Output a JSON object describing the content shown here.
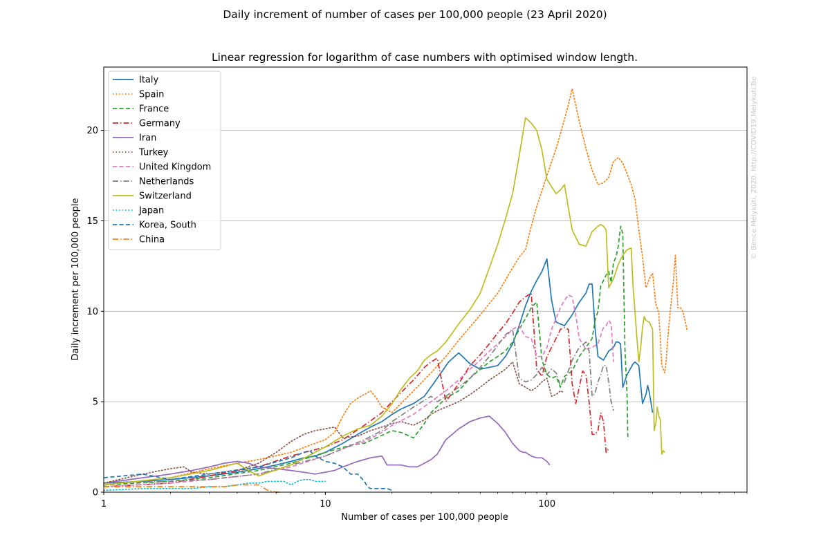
{
  "figure": {
    "suptitle": "Daily increment of number of cases per 100,000 people (23 April 2020)",
    "watermark": "© Bence Mélykúti, 2020. http://COVID19.Melykuti.Be"
  },
  "chart_data": {
    "type": "line",
    "title": "Linear regression for logarithm of case numbers with optimised window length.",
    "xlabel": "Number of cases per 100,000 people",
    "ylabel": "Daily increment per 100,000 people",
    "xscale": "log",
    "xlim": [
      1,
      800
    ],
    "ylim": [
      0,
      23.5
    ],
    "xticks": [
      {
        "value": 1,
        "label": "1"
      },
      {
        "value": 10,
        "label": "10"
      },
      {
        "value": 100,
        "label": "100"
      }
    ],
    "yticks": [
      {
        "value": 0,
        "label": "0"
      },
      {
        "value": 5,
        "label": "5"
      },
      {
        "value": 10,
        "label": "10"
      },
      {
        "value": 15,
        "label": "15"
      },
      {
        "value": 20,
        "label": "20"
      }
    ],
    "grid": "horizontal",
    "legend_position": "top-left",
    "series": [
      {
        "name": "Italy",
        "color": "#1f77b4",
        "dash": "solid",
        "x": [
          1,
          1.5,
          2,
          3,
          4,
          5,
          6,
          7,
          8,
          9,
          10,
          12,
          14,
          16,
          18,
          20,
          22,
          25,
          28,
          32,
          36,
          40,
          45,
          50,
          55,
          60,
          65,
          70,
          75,
          80,
          85,
          90,
          95,
          100,
          105,
          110,
          120,
          130,
          140,
          150,
          155,
          160,
          165,
          170,
          180,
          190,
          195,
          200,
          205,
          210,
          215,
          220,
          230,
          240,
          245,
          250,
          255,
          260,
          270,
          280,
          285,
          290,
          300
        ],
        "y": [
          0.5,
          0.6,
          0.7,
          0.9,
          1.1,
          1.3,
          1.5,
          1.7,
          1.9,
          2.0,
          2.2,
          2.7,
          3.2,
          3.6,
          3.9,
          4.3,
          4.6,
          4.9,
          5.3,
          6.3,
          7.2,
          7.7,
          7.1,
          6.8,
          6.9,
          7.0,
          7.5,
          8.2,
          9.2,
          10.3,
          11.1,
          11.7,
          12.2,
          12.9,
          10.6,
          9.4,
          9.2,
          9.8,
          10.5,
          11.0,
          11.5,
          11.5,
          9.0,
          7.5,
          7.3,
          7.8,
          7.9,
          8.0,
          8.3,
          8.3,
          8.2,
          5.8,
          6.5,
          6.9,
          7.1,
          7.2,
          7.1,
          7.0,
          4.9,
          5.4,
          5.9,
          5.5,
          4.4
        ]
      },
      {
        "name": "Spain",
        "color": "#ff7f0e",
        "dash": "dotted",
        "x": [
          1,
          2,
          3,
          4,
          5,
          7,
          9,
          10,
          11,
          12,
          13,
          14,
          15,
          16,
          17,
          18,
          20,
          25,
          30,
          35,
          40,
          50,
          60,
          70,
          75,
          80,
          85,
          90,
          100,
          110,
          115,
          125,
          130,
          140,
          150,
          160,
          170,
          180,
          190,
          200,
          210,
          220,
          230,
          240,
          250,
          260,
          270,
          280,
          290,
          300,
          310,
          320,
          330,
          340,
          345,
          350,
          360,
          370,
          380,
          385,
          390,
          400,
          410,
          420,
          430
        ],
        "y": [
          0.4,
          0.8,
          1.3,
          1.6,
          1.8,
          2.2,
          2.7,
          2.9,
          3.3,
          4.2,
          4.9,
          5.2,
          5.4,
          5.6,
          5.2,
          4.7,
          4.4,
          5.6,
          6.6,
          7.5,
          8.4,
          9.8,
          11.0,
          12.4,
          13.0,
          13.4,
          14.7,
          15.8,
          17.5,
          19.0,
          19.8,
          21.4,
          22.3,
          20.5,
          19.0,
          17.8,
          17.0,
          17.1,
          17.4,
          18.3,
          18.5,
          18.2,
          17.6,
          17.0,
          16.2,
          14.5,
          13.0,
          11.3,
          11.8,
          12.1,
          10.4,
          9.9,
          7.0,
          6.6,
          7.2,
          8.3,
          10.0,
          11.3,
          13.1,
          11.7,
          10.2,
          10.2,
          10.0,
          9.5,
          8.9
        ]
      },
      {
        "name": "France",
        "color": "#2ca02c",
        "dash": "dashed",
        "x": [
          1,
          2,
          3,
          5,
          7,
          10,
          13,
          15,
          17,
          20,
          22,
          25,
          28,
          30,
          35,
          40,
          45,
          50,
          55,
          60,
          65,
          70,
          75,
          80,
          85,
          88,
          90,
          95,
          100,
          105,
          110,
          115,
          120,
          130,
          140,
          150,
          160,
          165,
          170,
          175,
          180,
          185,
          190,
          195,
          200,
          205,
          210,
          215,
          220,
          225,
          230,
          232
        ],
        "y": [
          0.4,
          0.6,
          0.8,
          1.2,
          1.6,
          2.2,
          2.6,
          2.7,
          3.0,
          3.4,
          3.3,
          3.0,
          3.8,
          4.4,
          5.2,
          5.6,
          6.3,
          6.8,
          7.2,
          7.5,
          7.8,
          8.3,
          9.0,
          9.6,
          10.2,
          10.4,
          10.5,
          7.3,
          6.5,
          6.3,
          6.4,
          5.8,
          6.4,
          6.7,
          7.5,
          8.0,
          8.5,
          9.5,
          10.0,
          11.4,
          11.7,
          12.0,
          12.2,
          11.6,
          12.7,
          13.0,
          13.6,
          14.7,
          14.3,
          8.0,
          5.3,
          2.9
        ]
      },
      {
        "name": "Germany",
        "color": "#d62728",
        "dash": "dashdot",
        "x": [
          1,
          2,
          3,
          5,
          7,
          10,
          12,
          15,
          18,
          20,
          25,
          28,
          30,
          32,
          35,
          40,
          45,
          50,
          55,
          60,
          65,
          70,
          75,
          80,
          85,
          90,
          95,
          100,
          110,
          115,
          120,
          125,
          130,
          135,
          140,
          145,
          150,
          155,
          160,
          165,
          170,
          175,
          180,
          185,
          190
        ],
        "y": [
          0.3,
          0.5,
          0.9,
          1.4,
          2.0,
          2.5,
          2.9,
          3.7,
          4.4,
          5.0,
          6.2,
          6.9,
          7.2,
          7.4,
          5.0,
          6.0,
          7.0,
          7.6,
          8.2,
          8.8,
          9.3,
          9.9,
          10.5,
          10.8,
          11.0,
          6.8,
          6.4,
          7.5,
          8.5,
          9.0,
          9.1,
          9.0,
          6.0,
          4.9,
          5.8,
          6.7,
          6.5,
          5.0,
          3.2,
          3.2,
          3.4,
          4.4,
          3.9,
          2.2,
          2.4
        ]
      },
      {
        "name": "Iran",
        "color": "#9467bd",
        "dash": "solid",
        "x": [
          1,
          1.5,
          2,
          2.5,
          3,
          3.5,
          4,
          4.5,
          5,
          6,
          7,
          8,
          9,
          10,
          11,
          12,
          14,
          16,
          18,
          19,
          20,
          22,
          24,
          26,
          28,
          30,
          32,
          35,
          40,
          45,
          50,
          55,
          60,
          65,
          70,
          75,
          78,
          80,
          85,
          90,
          95,
          100,
          103
        ],
        "y": [
          0.5,
          0.8,
          1.0,
          1.2,
          1.4,
          1.6,
          1.7,
          1.6,
          1.4,
          1.3,
          1.2,
          1.1,
          1.0,
          1.1,
          1.2,
          1.4,
          1.7,
          1.9,
          2.0,
          1.5,
          1.5,
          1.5,
          1.4,
          1.4,
          1.6,
          1.8,
          2.1,
          2.9,
          3.5,
          3.9,
          4.1,
          4.2,
          3.8,
          3.3,
          2.7,
          2.3,
          2.2,
          2.2,
          2.0,
          1.9,
          1.9,
          1.7,
          1.5
        ]
      },
      {
        "name": "Turkey",
        "color": "#8c564b",
        "dash": "dotted",
        "x": [
          1,
          1.5,
          2,
          2.3,
          2.5,
          3,
          4,
          5,
          6,
          7,
          8,
          9,
          10,
          11,
          12,
          14,
          16,
          18,
          20,
          22,
          25,
          28,
          30,
          32,
          35,
          40,
          45,
          50,
          55,
          60,
          65,
          70,
          75,
          80,
          85,
          90,
          95,
          100,
          105,
          110,
          115,
          120
        ],
        "y": [
          0.5,
          1.0,
          1.3,
          1.4,
          1.1,
          1.0,
          1.2,
          1.6,
          2.2,
          2.8,
          3.2,
          3.4,
          3.5,
          3.6,
          3.0,
          3.1,
          3.4,
          3.6,
          3.8,
          3.9,
          3.7,
          4.0,
          4.3,
          4.5,
          4.7,
          5.0,
          5.4,
          5.8,
          6.2,
          6.5,
          6.8,
          7.2,
          6.0,
          5.8,
          5.6,
          5.8,
          6.1,
          6.3,
          5.3,
          5.4,
          5.6,
          5.5
        ]
      },
      {
        "name": "United Kingdom",
        "color": "#e377c2",
        "dash": "dashed",
        "x": [
          1,
          2,
          3,
          5,
          7,
          10,
          12,
          15,
          18,
          20,
          25,
          30,
          35,
          40,
          45,
          50,
          55,
          60,
          65,
          70,
          75,
          80,
          85,
          90,
          95,
          100,
          105,
          110,
          115,
          120,
          125,
          130,
          135,
          140,
          150,
          160,
          170,
          180,
          185,
          190,
          195,
          200
        ],
        "y": [
          0.3,
          0.5,
          0.7,
          1.0,
          1.4,
          2.0,
          2.4,
          2.8,
          3.3,
          3.7,
          4.3,
          5.0,
          5.6,
          6.2,
          6.8,
          7.3,
          7.8,
          8.2,
          8.6,
          9.0,
          9.2,
          8.6,
          8.5,
          7.5,
          7.5,
          8.0,
          9.0,
          9.6,
          10.2,
          10.6,
          10.9,
          10.8,
          9.8,
          8.5,
          7.9,
          8.0,
          8.2,
          9.1,
          9.2,
          9.5,
          9.3,
          7.2
        ]
      },
      {
        "name": "Netherlands",
        "color": "#7f7f7f",
        "dash": "dashdot",
        "x": [
          1,
          2,
          3,
          5,
          7,
          10,
          12,
          15,
          18,
          20,
          25,
          30,
          32,
          35,
          40,
          45,
          50,
          55,
          60,
          65,
          70,
          75,
          80,
          85,
          90,
          95,
          100,
          105,
          110,
          115,
          120,
          130,
          140,
          150,
          155,
          160,
          165,
          170,
          175,
          180,
          185,
          190,
          195,
          200
        ],
        "y": [
          0.5,
          0.6,
          0.7,
          1.0,
          1.5,
          2.0,
          2.4,
          2.9,
          3.4,
          3.9,
          4.7,
          5.3,
          5.0,
          5.3,
          5.8,
          6.3,
          6.9,
          7.5,
          8.1,
          8.7,
          9.0,
          6.3,
          6.1,
          6.2,
          6.5,
          6.9,
          6.5,
          6.8,
          6.6,
          5.9,
          6.1,
          7.3,
          8.0,
          8.3,
          7.8,
          5.3,
          5.5,
          6.1,
          6.5,
          7.0,
          7.0,
          6.1,
          5.0,
          4.5
        ]
      },
      {
        "name": "Switzerland",
        "color": "#bcbd22",
        "dash": "solid",
        "x": [
          1,
          2,
          3,
          4,
          4.5,
          5,
          7,
          10,
          12,
          14,
          16,
          18,
          20,
          22,
          24,
          26,
          28,
          30,
          32,
          35,
          40,
          45,
          50,
          55,
          60,
          65,
          70,
          75,
          80,
          85,
          90,
          95,
          100,
          110,
          115,
          120,
          130,
          140,
          150,
          160,
          170,
          175,
          180,
          185,
          190,
          200,
          210,
          220,
          230,
          240,
          245,
          250,
          255,
          260,
          265,
          270,
          275,
          280,
          290,
          300,
          305,
          310,
          315,
          320,
          325,
          330,
          335,
          340
        ],
        "y": [
          0.4,
          0.8,
          1.2,
          1.6,
          1.2,
          0.9,
          1.5,
          2.5,
          3.1,
          3.5,
          3.7,
          4.2,
          4.9,
          5.7,
          6.3,
          6.7,
          7.3,
          7.6,
          7.8,
          8.3,
          9.3,
          10.1,
          11.0,
          12.4,
          13.7,
          15.1,
          16.5,
          18.6,
          20.7,
          20.4,
          20.0,
          18.9,
          17.3,
          16.5,
          16.7,
          17.0,
          14.5,
          13.7,
          13.6,
          14.4,
          14.7,
          14.8,
          14.7,
          14.5,
          11.3,
          11.8,
          12.6,
          13.1,
          13.4,
          13.5,
          11.3,
          9.9,
          8.5,
          7.2,
          8.0,
          9.1,
          9.7,
          9.5,
          9.4,
          9.0,
          3.4,
          3.8,
          4.7,
          4.2,
          4.0,
          2.1,
          2.3,
          2.2
        ]
      },
      {
        "name": "Japan",
        "color": "#17becf",
        "dash": "dotted",
        "x": [
          1,
          1.5,
          2,
          2.5,
          3,
          3.5,
          4,
          4.5,
          5,
          5.5,
          6,
          6.5,
          7,
          7.5,
          8,
          8.5,
          9,
          9.5,
          10
        ],
        "y": [
          0.1,
          0.2,
          0.2,
          0.2,
          0.3,
          0.3,
          0.4,
          0.5,
          0.5,
          0.6,
          0.6,
          0.6,
          0.4,
          0.6,
          0.7,
          0.7,
          0.6,
          0.6,
          0.6
        ]
      },
      {
        "name": "Korea, South",
        "color": "#1f77b4",
        "dash": "dashed",
        "x": [
          1,
          1.5,
          2,
          3,
          5,
          7,
          8,
          8.5,
          9,
          10,
          11,
          12,
          13,
          14,
          15,
          15.5,
          16,
          17,
          18,
          19,
          20
        ],
        "y": [
          0.8,
          1.0,
          0.7,
          1.0,
          1.4,
          1.9,
          2.2,
          2.3,
          2.0,
          1.7,
          1.6,
          1.4,
          1.0,
          1.0,
          0.6,
          0.3,
          0.2,
          0.2,
          0.2,
          0.2,
          0.1
        ]
      },
      {
        "name": "China",
        "color": "#ff7f0e",
        "dash": "dashdot",
        "x": [
          1,
          1.5,
          2,
          2.5,
          3,
          3.5,
          4,
          4.5,
          5,
          5.5,
          6,
          6.3
        ],
        "y": [
          0.3,
          0.3,
          0.3,
          0.3,
          0.3,
          0.3,
          0.4,
          0.4,
          0.4,
          0.1,
          0.0,
          0.0
        ]
      }
    ]
  }
}
